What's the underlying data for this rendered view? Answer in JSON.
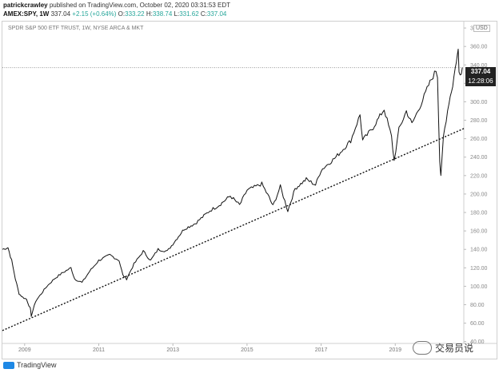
{
  "header": {
    "publisher": "patrickcrawley",
    "published_text": "published on TradingView.com, October 02, 2020 03:31:53 EDT",
    "symbol": "AMEX:SPY, 1W",
    "last": "337.04",
    "change": "+2.15 (+0.64%)",
    "o_label": "O:",
    "o_value": "333.22",
    "h_label": "H:",
    "h_value": "338.74",
    "l_label": "L:",
    "l_value": "331.62",
    "c_label": "C:",
    "c_value": "337.04"
  },
  "chart_title": "SPDR S&P 500 ETF TRUST, 1W, NYSE ARCA & MKT",
  "currency": "USD",
  "price_badge": "337.04",
  "time_badge": "12:28:06",
  "footer": {
    "brand": "TradingView"
  },
  "watermark": {
    "text": "交易员说"
  },
  "colors": {
    "line": "#111111",
    "trend": "#111111",
    "grid": "#cccccc",
    "accent": "#26a69a"
  },
  "chart_data": {
    "type": "line",
    "x_labels": [
      "2009",
      "2011",
      "2013",
      "2015",
      "2017",
      "2019"
    ],
    "y_ticks": [
      40,
      60,
      80,
      100,
      120,
      140,
      160,
      180,
      200,
      220,
      240,
      260,
      280,
      300,
      320,
      340,
      360,
      380
    ],
    "ylim": [
      38,
      387
    ],
    "xlim": [
      2008.4,
      2020.85
    ],
    "series": [
      {
        "values": [
          [
            2008.4,
            140
          ],
          [
            2008.55,
            142
          ],
          [
            2008.65,
            128
          ],
          [
            2008.75,
            108
          ],
          [
            2008.85,
            92
          ],
          [
            2008.95,
            88
          ],
          [
            2009.05,
            86
          ],
          [
            2009.15,
            76
          ],
          [
            2009.18,
            68
          ],
          [
            2009.3,
            84
          ],
          [
            2009.45,
            92
          ],
          [
            2009.6,
            100
          ],
          [
            2009.8,
            108
          ],
          [
            2010.0,
            114
          ],
          [
            2010.25,
            120
          ],
          [
            2010.35,
            108
          ],
          [
            2010.55,
            104
          ],
          [
            2010.75,
            116
          ],
          [
            2011.0,
            128
          ],
          [
            2011.3,
            134
          ],
          [
            2011.55,
            128
          ],
          [
            2011.65,
            112
          ],
          [
            2011.75,
            108
          ],
          [
            2011.95,
            124
          ],
          [
            2012.2,
            138
          ],
          [
            2012.4,
            128
          ],
          [
            2012.6,
            140
          ],
          [
            2012.85,
            138
          ],
          [
            2013.0,
            146
          ],
          [
            2013.3,
            162
          ],
          [
            2013.6,
            168
          ],
          [
            2014.0,
            182
          ],
          [
            2014.25,
            188
          ],
          [
            2014.55,
            198
          ],
          [
            2014.8,
            188
          ],
          [
            2015.0,
            204
          ],
          [
            2015.4,
            211
          ],
          [
            2015.6,
            196
          ],
          [
            2015.7,
            187
          ],
          [
            2015.9,
            208
          ],
          [
            2016.1,
            182
          ],
          [
            2016.3,
            206
          ],
          [
            2016.6,
            216
          ],
          [
            2016.85,
            210
          ],
          [
            2017.0,
            226
          ],
          [
            2017.4,
            240
          ],
          [
            2017.8,
            258
          ],
          [
            2018.05,
            286
          ],
          [
            2018.12,
            258
          ],
          [
            2018.4,
            272
          ],
          [
            2018.7,
            292
          ],
          [
            2018.9,
            262
          ],
          [
            2018.97,
            236
          ],
          [
            2019.1,
            270
          ],
          [
            2019.3,
            290
          ],
          [
            2019.45,
            276
          ],
          [
            2019.7,
            298
          ],
          [
            2019.9,
            318
          ],
          [
            2020.1,
            334
          ],
          [
            2020.14,
            328
          ],
          [
            2020.2,
            236
          ],
          [
            2020.23,
            218
          ],
          [
            2020.3,
            262
          ],
          [
            2020.45,
            300
          ],
          [
            2020.55,
            318
          ],
          [
            2020.65,
            345
          ],
          [
            2020.7,
            356
          ],
          [
            2020.72,
            335
          ],
          [
            2020.78,
            330
          ],
          [
            2020.81,
            337
          ]
        ]
      }
    ],
    "trendline": [
      [
        2008.4,
        52
      ],
      [
        2020.85,
        271
      ]
    ],
    "price_line": 337.04
  }
}
